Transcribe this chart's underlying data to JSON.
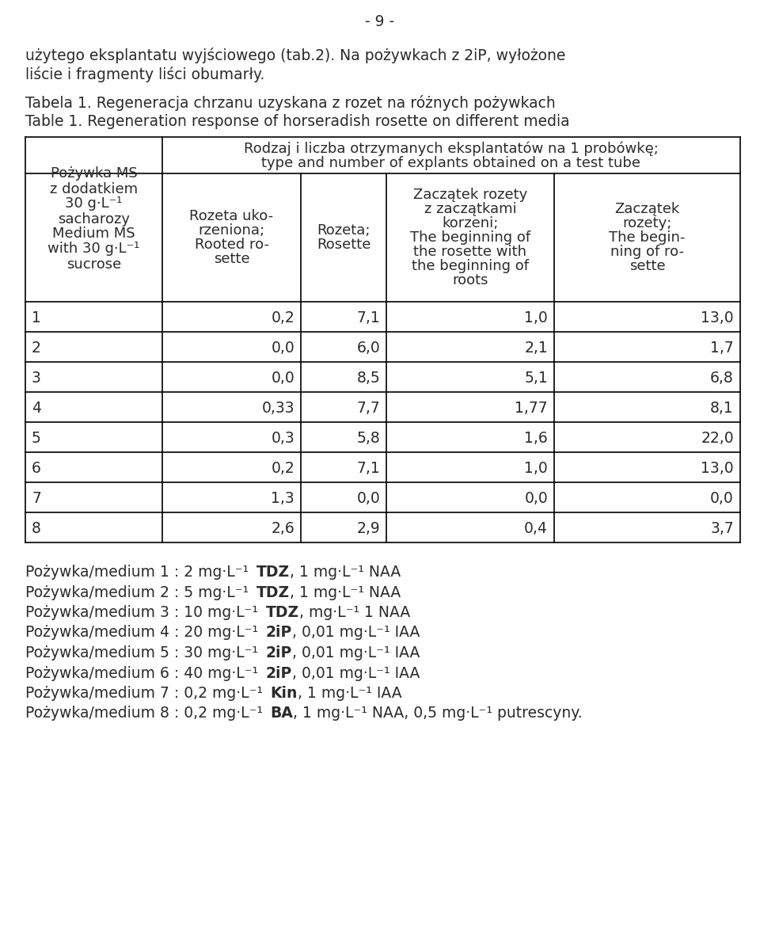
{
  "page_header": "- 9 -",
  "intro_line1": "użytego eksplantatu wyjściowego (tab.2). Na pożywkach z 2iP, wyłożone",
  "intro_line2": "liście i fragmenty liści obumarły.",
  "table_title_pl": "Tabela 1. Regeneracja chrzanu uzyskana z rozet na różnych pożywkach",
  "table_title_en": "Table 1. Regeneration response of horseradish rosette on different media",
  "col0_lines": [
    "Pożywka MS",
    "z dodatkiem",
    "30 g·L⁻¹",
    "sacharozy",
    "Medium MS",
    "with 30 g·L⁻¹",
    "sucrose"
  ],
  "span_line1": "Rodzaj i liczba otrzymanych eksplantatów na 1 probówkę;",
  "span_line2": "type and number of explants obtained on a test tube",
  "col1_lines": [
    "Rozeta uko-",
    "rzeniona;",
    "Rooted ro-",
    "sette"
  ],
  "col2_lines": [
    "Rozeta;",
    "Rosette"
  ],
  "col3_lines": [
    "Zaczątek rozety",
    "z zaczątkami",
    "korzeni;",
    "The beginning of",
    "the rosette with",
    "the beginning of",
    "roots"
  ],
  "col4_lines": [
    "Zaczątek",
    "rozety;",
    "The begin-",
    "ning of ro-",
    "sette"
  ],
  "data_rows": [
    [
      "1",
      "0,2",
      "7,1",
      "1,0",
      "13,0"
    ],
    [
      "2",
      "0,0",
      "6,0",
      "2,1",
      "1,7"
    ],
    [
      "3",
      "0,0",
      "8,5",
      "5,1",
      "6,8"
    ],
    [
      "4",
      "0,33",
      "7,7",
      "1,77",
      "8,1"
    ],
    [
      "5",
      "0,3",
      "5,8",
      "1,6",
      "22,0"
    ],
    [
      "6",
      "0,2",
      "7,1",
      "1,0",
      "13,0"
    ],
    [
      "7",
      "1,3",
      "0,0",
      "0,0",
      "0,0"
    ],
    [
      "8",
      "2,6",
      "2,9",
      "0,4",
      "3,7"
    ]
  ],
  "footnotes_parts": [
    [
      "Pożywka/medium 1 : 2 mg·L⁻¹ ",
      "TDZ",
      ", 1 mg·L⁻¹ NAA"
    ],
    [
      "Pożywka/medium 2 : 5 mg·L⁻¹ ",
      "TDZ",
      ", 1 mg·L⁻¹ NAA"
    ],
    [
      "Pożywka/medium 3 : 10 mg·L⁻¹ ",
      "TDZ",
      ", mg·L⁻¹ 1 NAA"
    ],
    [
      "Pożywka/medium 4 : 20 mg·L⁻¹ ",
      "2iP",
      ", 0,01 mg·L⁻¹ IAA"
    ],
    [
      "Pożywka/medium 5 : 30 mg·L⁻¹ ",
      "2iP",
      ", 0,01 mg·L⁻¹ IAA"
    ],
    [
      "Pożywka/medium 6 : 40 mg·L⁻¹ ",
      "2iP",
      ", 0,01 mg·L⁻¹ IAA"
    ],
    [
      "Pożywka/medium 7 : 0,2 mg·L⁻¹ ",
      "Kin",
      ", 1 mg·L⁻¹ IAA"
    ],
    [
      "Pożywka/medium 8 : 0,2 mg·L⁻¹ ",
      "BA",
      ", 1 mg·L⁻¹ NAA, 0,5 mg·L⁻¹ putrescyny."
    ]
  ],
  "bg": "#ffffff",
  "fg": "#2b2b2b",
  "lc": "#000000"
}
